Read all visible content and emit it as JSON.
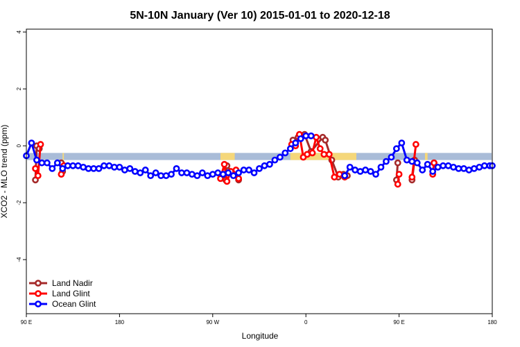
{
  "chart_data": {
    "type": "line",
    "title": "5N-10N January (Ver 10)   2015-01-01 to 2020-12-18",
    "xlabel": "Longitude",
    "ylabel": "XCO2 - MLO trend (ppm)",
    "xlim": [
      -90,
      270
    ],
    "ylim": [
      -5.9,
      4.1
    ],
    "x_ticks": [
      {
        "value": -90,
        "label": "90 E"
      },
      {
        "value": -18,
        "label": "180"
      },
      {
        "value": 54,
        "label": "90 W"
      },
      {
        "value": 126,
        "label": "0"
      },
      {
        "value": 198,
        "label": "90 E"
      },
      {
        "value": 270,
        "label": "180"
      }
    ],
    "y_ticks": [
      -4,
      -2,
      0,
      2,
      4
    ],
    "legend_position": "bottom-left",
    "colors": {
      "land_nadir": "#a52a2a",
      "land_glint": "#ff0000",
      "ocean_glint": "#0000ff",
      "ocean_band": "#a9bcd8",
      "land_band": "#f5d77a"
    },
    "background_band": {
      "y_range": [
        -0.5,
        -0.25
      ],
      "land_segments": [
        [
          -62,
          -61
        ],
        [
          60,
          71
        ],
        [
          114,
          165
        ],
        [
          218,
          220
        ]
      ]
    },
    "series": [
      {
        "name": "Land Nadir",
        "key": "land_nadir",
        "segments": [
          [
            [
              -83,
              -1.2
            ],
            [
              -82,
              0.0
            ],
            [
              -80,
              -0.1
            ]
          ],
          [
            [
              -63,
              -0.6
            ],
            [
              -62,
              -0.9
            ]
          ],
          [
            [
              64,
              -1.2
            ],
            [
              65,
              -0.7
            ],
            [
              70,
              -1.0
            ],
            [
              72,
              -0.9
            ],
            [
              74,
              -1.2
            ]
          ],
          [
            [
              116,
              0.2
            ],
            [
              118,
              0.1
            ],
            [
              120,
              0.3
            ],
            [
              125,
              0.4
            ],
            [
              130,
              -0.2
            ],
            [
              139,
              0.3
            ],
            [
              141,
              0.2
            ],
            [
              146,
              -0.5
            ],
            [
              151,
              -1.1
            ],
            [
              155,
              -1.0
            ],
            [
              158,
              -1.05
            ]
          ],
          [
            [
              196,
              -1.2
            ],
            [
              197,
              -0.6
            ]
          ],
          [
            [
              208,
              -1.2
            ],
            [
              210,
              -0.5
            ]
          ],
          [
            [
              225,
              -0.6
            ]
          ]
        ]
      },
      {
        "name": "Land Glint",
        "key": "land_glint",
        "segments": [
          [
            [
              -83,
              -0.8
            ],
            [
              -81,
              -1.05
            ],
            [
              -79,
              0.05
            ]
          ],
          [
            [
              -63,
              -1.0
            ],
            [
              -61,
              -0.7
            ]
          ],
          [
            [
              60,
              -1.15
            ],
            [
              63,
              -0.65
            ],
            [
              65,
              -1.25
            ],
            [
              68,
              -0.9
            ],
            [
              72,
              -0.85
            ],
            [
              74,
              -1.15
            ]
          ],
          [
            [
              115,
              0.05
            ],
            [
              118,
              0.0
            ],
            [
              121,
              0.4
            ],
            [
              124,
              -0.4
            ],
            [
              127,
              -0.3
            ],
            [
              131,
              -0.25
            ],
            [
              134,
              0.3
            ],
            [
              137,
              -0.1
            ],
            [
              140,
              -0.3
            ],
            [
              144,
              -0.3
            ],
            [
              148,
              -1.1
            ],
            [
              152,
              -1.0
            ],
            [
              156,
              -1.1
            ]
          ],
          [
            [
              197,
              -1.35
            ],
            [
              198,
              -1.0
            ]
          ],
          [
            [
              208,
              -1.1
            ],
            [
              211,
              0.05
            ]
          ],
          [
            [
              224,
              -1.0
            ],
            [
              225,
              -0.6
            ]
          ]
        ]
      },
      {
        "name": "Ocean Glint",
        "key": "ocean_glint",
        "segments": [
          [
            [
              -90,
              -0.35
            ],
            [
              -86,
              0.1
            ],
            [
              -82,
              -0.5
            ],
            [
              -78,
              -0.6
            ],
            [
              -74,
              -0.6
            ],
            [
              -70,
              -0.8
            ],
            [
              -66,
              -0.6
            ],
            [
              -62,
              -0.8
            ],
            [
              -58,
              -0.7
            ],
            [
              -54,
              -0.7
            ],
            [
              -50,
              -0.7
            ],
            [
              -46,
              -0.75
            ],
            [
              -42,
              -0.8
            ],
            [
              -38,
              -0.8
            ],
            [
              -34,
              -0.8
            ],
            [
              -30,
              -0.7
            ],
            [
              -26,
              -0.7
            ],
            [
              -22,
              -0.75
            ],
            [
              -18,
              -0.75
            ],
            [
              -14,
              -0.85
            ],
            [
              -10,
              -0.8
            ],
            [
              -6,
              -0.9
            ],
            [
              -2,
              -0.95
            ],
            [
              2,
              -0.85
            ],
            [
              6,
              -1.05
            ],
            [
              10,
              -0.95
            ],
            [
              14,
              -1.05
            ],
            [
              18,
              -1.05
            ],
            [
              22,
              -1.0
            ],
            [
              26,
              -0.8
            ],
            [
              30,
              -0.95
            ],
            [
              34,
              -0.95
            ],
            [
              38,
              -1.0
            ],
            [
              42,
              -1.05
            ],
            [
              46,
              -0.95
            ],
            [
              50,
              -1.05
            ],
            [
              54,
              -1.0
            ],
            [
              58,
              -0.95
            ],
            [
              62,
              -1.0
            ],
            [
              66,
              -0.95
            ],
            [
              70,
              -1.05
            ],
            [
              74,
              -0.95
            ],
            [
              78,
              -0.85
            ],
            [
              82,
              -0.85
            ],
            [
              86,
              -0.95
            ],
            [
              90,
              -0.8
            ],
            [
              94,
              -0.7
            ],
            [
              98,
              -0.65
            ],
            [
              102,
              -0.5
            ],
            [
              106,
              -0.4
            ],
            [
              110,
              -0.25
            ],
            [
              114,
              -0.1
            ],
            [
              118,
              0.1
            ],
            [
              122,
              0.25
            ],
            [
              126,
              0.35
            ],
            [
              130,
              0.35
            ]
          ],
          [
            [
              156,
              -1.05
            ],
            [
              160,
              -0.75
            ],
            [
              164,
              -0.85
            ],
            [
              168,
              -0.9
            ],
            [
              172,
              -0.85
            ],
            [
              176,
              -0.9
            ],
            [
              180,
              -1.0
            ],
            [
              184,
              -0.75
            ],
            [
              188,
              -0.55
            ],
            [
              192,
              -0.4
            ],
            [
              196,
              -0.1
            ],
            [
              200,
              0.1
            ],
            [
              204,
              -0.5
            ],
            [
              208,
              -0.55
            ],
            [
              212,
              -0.6
            ],
            [
              216,
              -0.85
            ],
            [
              220,
              -0.65
            ],
            [
              224,
              -0.9
            ],
            [
              228,
              -0.75
            ],
            [
              232,
              -0.7
            ],
            [
              236,
              -0.7
            ],
            [
              240,
              -0.75
            ],
            [
              244,
              -0.8
            ],
            [
              248,
              -0.8
            ],
            [
              252,
              -0.85
            ],
            [
              256,
              -0.8
            ],
            [
              260,
              -0.75
            ],
            [
              264,
              -0.7
            ],
            [
              268,
              -0.7
            ],
            [
              270,
              -0.7
            ]
          ]
        ]
      }
    ]
  }
}
